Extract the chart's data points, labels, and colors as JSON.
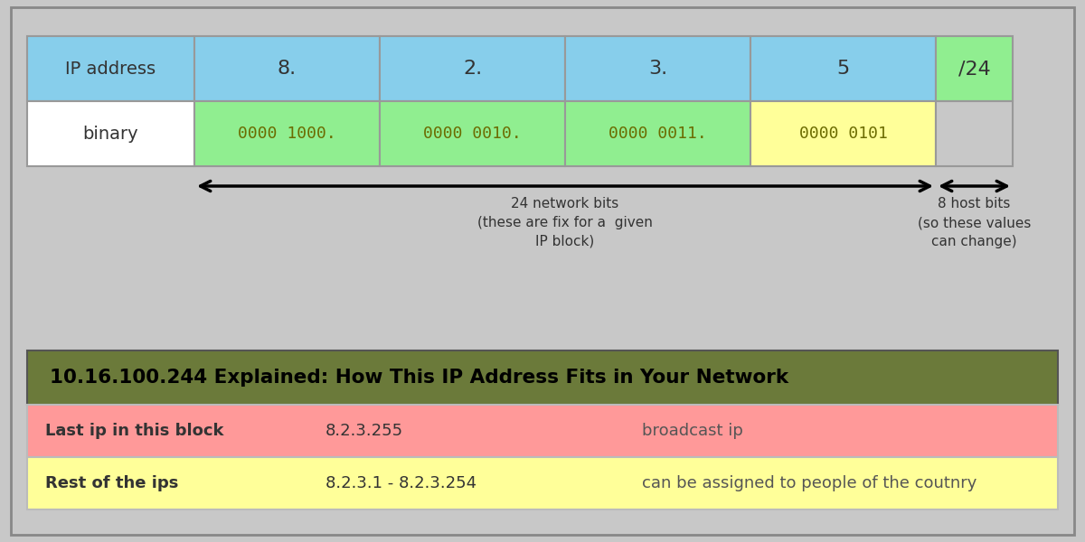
{
  "bg_color": "#c8c8c8",
  "outer_border_color": "#888888",
  "title": "10.16.100.244 Explained: How This IP Address Fits in Your Network",
  "title_bg": "#6b7a3a",
  "title_color": "#000000",
  "ip_row": {
    "label": "IP address",
    "label_bg": "#87ceeb",
    "cells": [
      "8.",
      "2.",
      "3.",
      "5"
    ],
    "cells_bg": "#87ceeb",
    "last_cell": "/24",
    "last_cell_bg": "#90ee90"
  },
  "binary_row": {
    "label": "binary",
    "label_bg": "#ffffff",
    "cells": [
      "0000 1000.",
      "0000 0010.",
      "0000 0011."
    ],
    "cells_bg": "#90ee90",
    "last_cell": "0000 0101",
    "last_cell_bg": "#ffff99"
  },
  "binary_text_color": "#6b6b00",
  "arrow_network_label": "24 network bits\n(these are fix for a  given\nIP block)",
  "arrow_host_label": "8 host bits\n(so these values\ncan change)",
  "table_rows": [
    {
      "label": "Last ip in this block",
      "value": "8.2.3.255",
      "description": "broadcast ip",
      "row_bg": "#ff9999"
    },
    {
      "label": "Rest of the ips",
      "value": "8.2.3.1 - 8.2.3.254",
      "description": "can be assigned to people of the coutnry",
      "row_bg": "#ffff99"
    }
  ]
}
